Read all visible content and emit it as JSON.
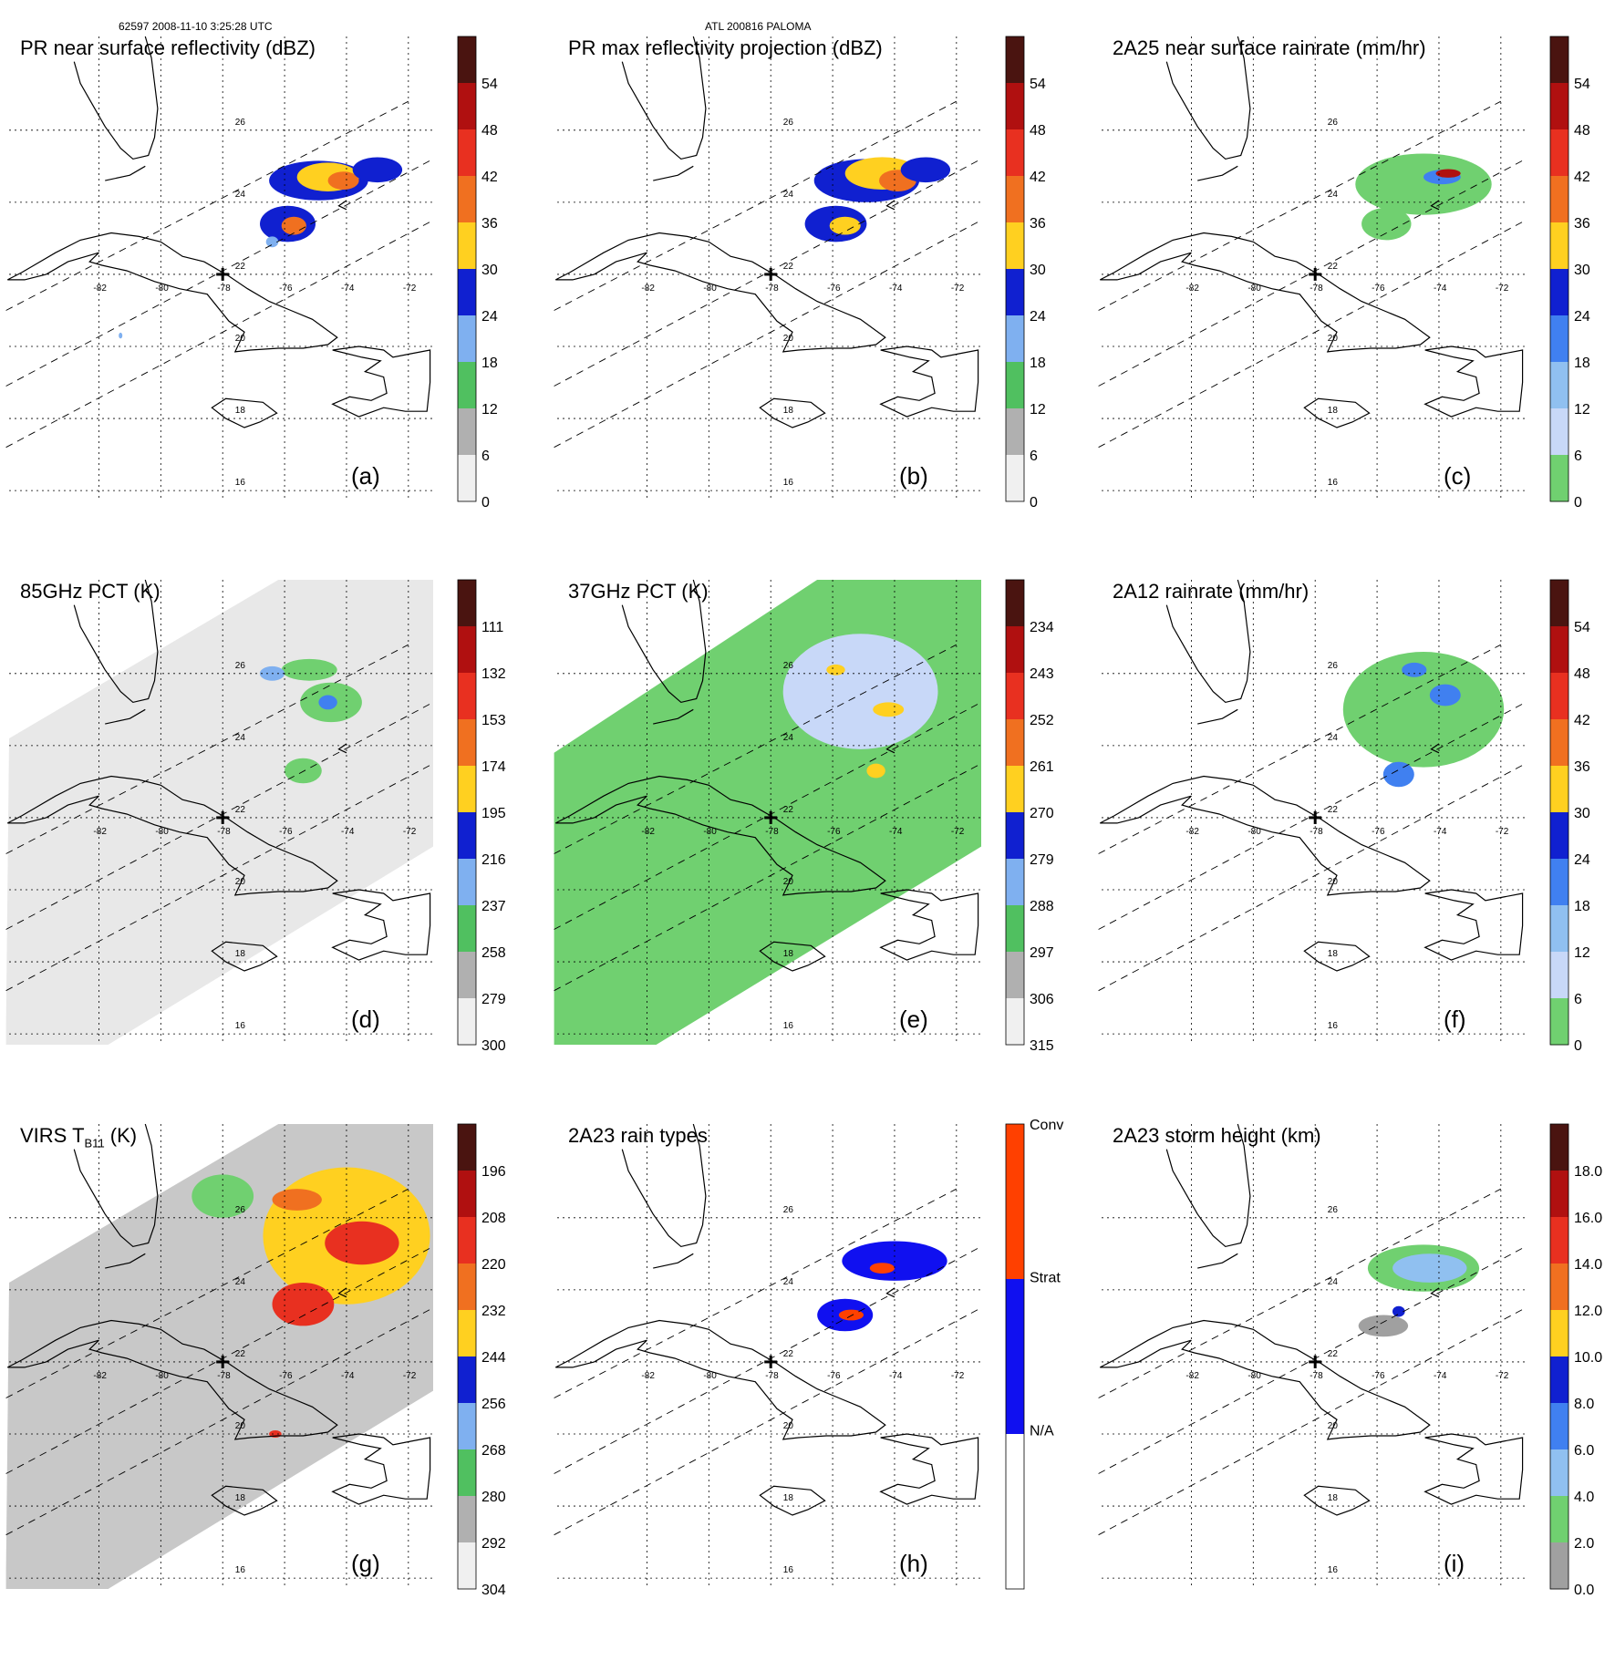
{
  "figure": {
    "header_left": "62597 2008-11-10 3:25:28 UTC",
    "header_center": "ATL 200816 PALOMA"
  },
  "map": {
    "lon_labels": [
      "-82",
      "-80",
      "-78",
      "-76",
      "-74",
      "-72"
    ],
    "lat_labels": [
      "26",
      "24",
      "22",
      "20",
      "18",
      "16"
    ],
    "storm_marker_icon": "cross-icon"
  },
  "panels": [
    {
      "id": "a",
      "title": "PR near surface reflectivity (dBZ)",
      "tag": "(a)",
      "colorbar": {
        "labels": [
          "54",
          "48",
          "42",
          "36",
          "30",
          "24",
          "18",
          "12",
          "6",
          "0"
        ],
        "colors": [
          "#4a1410",
          "#b01010",
          "#e83020",
          "#f07020",
          "#ffd020",
          "#1020d0",
          "#7fb0f0",
          "#50c060",
          "#b0b0b0",
          "#f0f0f0"
        ]
      }
    },
    {
      "id": "b",
      "title": "PR max reflectivity projection (dBZ)",
      "tag": "(b)",
      "colorbar": {
        "labels": [
          "54",
          "48",
          "42",
          "36",
          "30",
          "24",
          "18",
          "12",
          "6",
          "0"
        ],
        "colors": [
          "#4a1410",
          "#b01010",
          "#e83020",
          "#f07020",
          "#ffd020",
          "#1020d0",
          "#7fb0f0",
          "#50c060",
          "#b0b0b0",
          "#f0f0f0"
        ]
      }
    },
    {
      "id": "c",
      "title": "2A25 near surface rainrate (mm/hr)",
      "tag": "(c)",
      "colorbar": {
        "labels": [
          "54",
          "48",
          "42",
          "36",
          "30",
          "24",
          "18",
          "12",
          "6",
          "0"
        ],
        "colors": [
          "#4a1410",
          "#b01010",
          "#e83020",
          "#f07020",
          "#ffd020",
          "#1020d0",
          "#4080f0",
          "#90c0f0",
          "#c8d8f8",
          "#70d070"
        ]
      }
    },
    {
      "id": "d",
      "title": "85GHz PCT (K)",
      "tag": "(d)",
      "colorbar": {
        "labels": [
          "111",
          "132",
          "153",
          "174",
          "195",
          "216",
          "237",
          "258",
          "279",
          "300"
        ],
        "colors": [
          "#4a1410",
          "#b01010",
          "#e83020",
          "#f07020",
          "#ffd020",
          "#1020d0",
          "#7fb0f0",
          "#50c060",
          "#b0b0b0",
          "#f0f0f0"
        ]
      }
    },
    {
      "id": "e",
      "title": "37GHz PCT (K)",
      "tag": "(e)",
      "colorbar": {
        "labels": [
          "234",
          "243",
          "252",
          "261",
          "270",
          "279",
          "288",
          "297",
          "306",
          "315"
        ],
        "colors": [
          "#4a1410",
          "#b01010",
          "#e83020",
          "#f07020",
          "#ffd020",
          "#1020d0",
          "#7fb0f0",
          "#50c060",
          "#b0b0b0",
          "#f0f0f0"
        ]
      }
    },
    {
      "id": "f",
      "title": "2A12 rainrate (mm/hr)",
      "tag": "(f)",
      "colorbar": {
        "labels": [
          "54",
          "48",
          "42",
          "36",
          "30",
          "24",
          "18",
          "12",
          "6",
          "0"
        ],
        "colors": [
          "#4a1410",
          "#b01010",
          "#e83020",
          "#f07020",
          "#ffd020",
          "#1020d0",
          "#4080f0",
          "#90c0f0",
          "#c8d8f8",
          "#70d070"
        ]
      }
    },
    {
      "id": "g",
      "title": "VIRS T",
      "title_sub": "B11",
      "title_suffix": " (K)",
      "tag": "(g)",
      "colorbar": {
        "labels": [
          "196",
          "208",
          "220",
          "232",
          "244",
          "256",
          "268",
          "280",
          "292",
          "304"
        ],
        "colors": [
          "#4a1410",
          "#b01010",
          "#e83020",
          "#f07020",
          "#ffd020",
          "#1020d0",
          "#7fb0f0",
          "#50c060",
          "#b0b0b0",
          "#f0f0f0"
        ]
      }
    },
    {
      "id": "h",
      "title": "2A23 rain types",
      "tag": "(h)",
      "colorbar": {
        "labels": [
          "Conv",
          "Strat",
          "N/A"
        ],
        "colors": [
          "#ff4000",
          "#1010f0",
          "#ffffff"
        ]
      }
    },
    {
      "id": "i",
      "title": "2A23 storm height (km)",
      "tag": "(i)",
      "colorbar": {
        "labels": [
          "18.0",
          "16.0",
          "14.0",
          "12.0",
          "10.0",
          "8.0",
          "6.0",
          "4.0",
          "2.0",
          "0.0"
        ],
        "colors": [
          "#4a1410",
          "#b01010",
          "#e83020",
          "#f07020",
          "#ffd020",
          "#1020d0",
          "#4080f0",
          "#90c0f0",
          "#70d070",
          "#a0a0a0"
        ]
      }
    }
  ]
}
